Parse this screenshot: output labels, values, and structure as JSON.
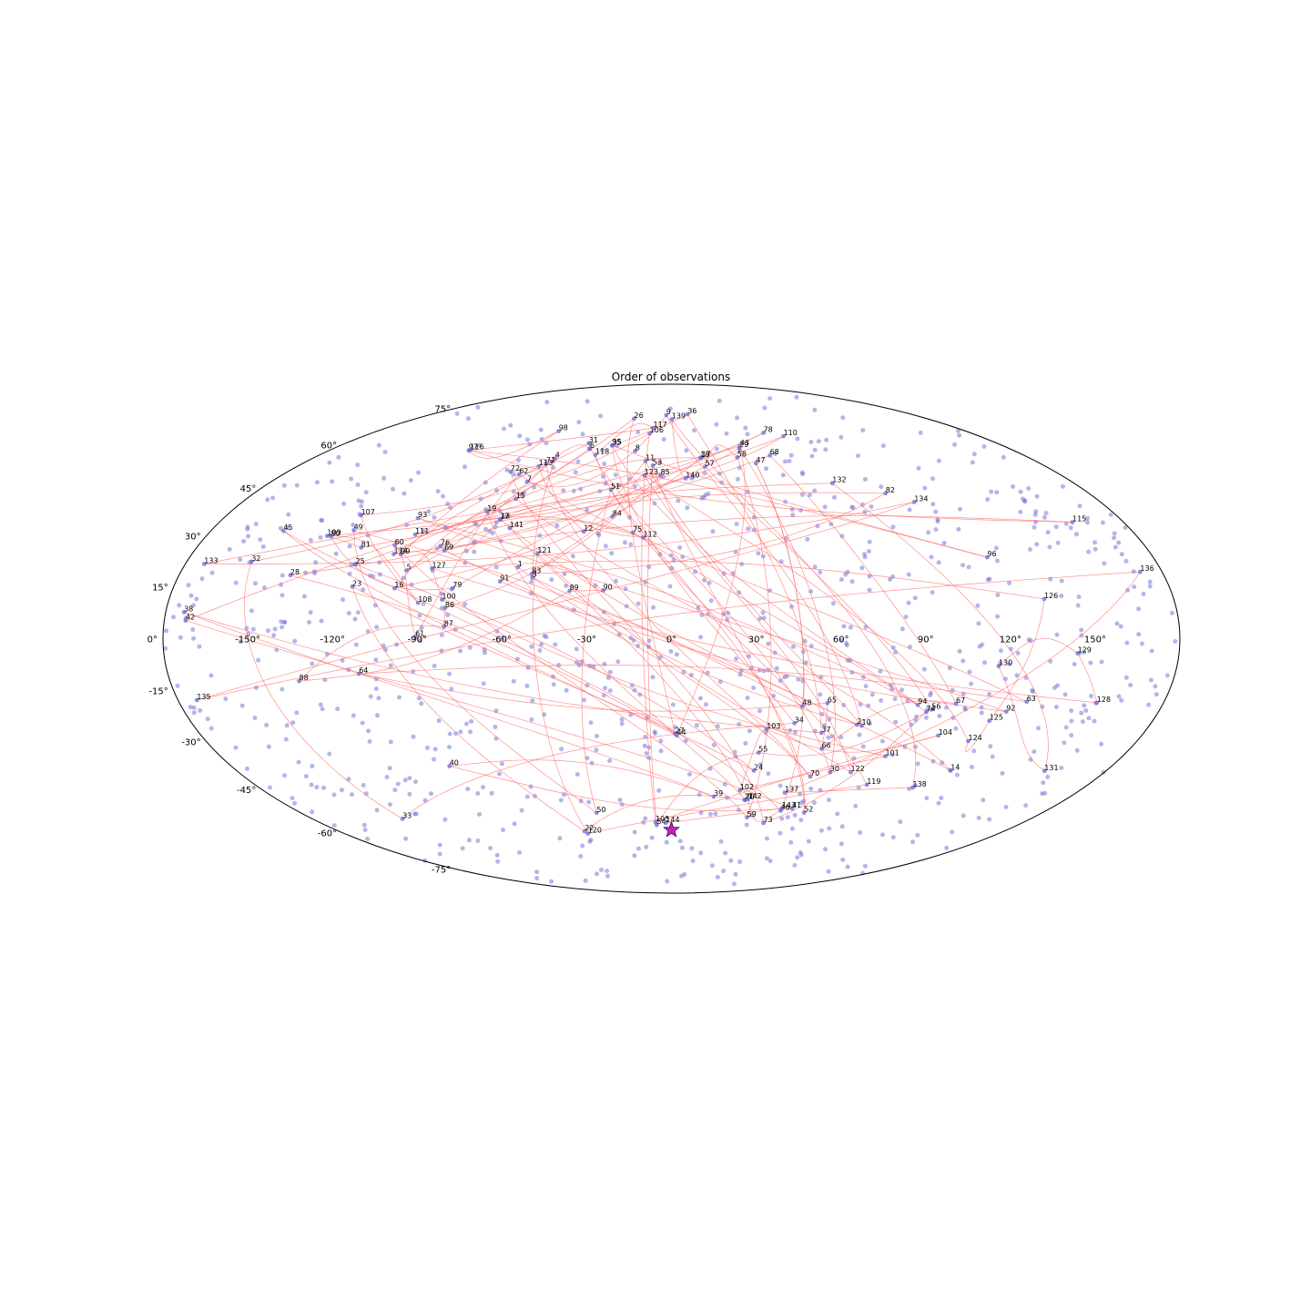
{
  "chart_data": {
    "type": "scatter",
    "projection": "mollweide",
    "title": "Order of observations",
    "grid": false,
    "colors": {
      "field_dots": "#6b6bd6",
      "path_lines": "#ff6b6b",
      "start_marker": "#c21fc2",
      "frame": "#000000"
    },
    "start_marker": {
      "lon": 0,
      "lat": -59
    },
    "lon_tick_labels": [
      {
        "lon": -150,
        "label": "-150°"
      },
      {
        "lon": -120,
        "label": "-120°"
      },
      {
        "lon": -90,
        "label": "-90°"
      },
      {
        "lon": -60,
        "label": "-60°"
      },
      {
        "lon": -30,
        "label": "-30°"
      },
      {
        "lon": 0,
        "label": "0°"
      },
      {
        "lon": 30,
        "label": "30°"
      },
      {
        "lon": 60,
        "label": "60°"
      },
      {
        "lon": 90,
        "label": "90°"
      },
      {
        "lon": 120,
        "label": "120°"
      },
      {
        "lon": 150,
        "label": "150°"
      }
    ],
    "lat_tick_labels": [
      {
        "lat": 75,
        "label": "75°"
      },
      {
        "lat": 60,
        "label": "60°"
      },
      {
        "lat": 45,
        "label": "45°"
      },
      {
        "lat": 30,
        "label": "30°"
      },
      {
        "lat": 15,
        "label": "15°"
      },
      {
        "lat": 0,
        "label": "0°"
      },
      {
        "lat": -15,
        "label": "-15°"
      },
      {
        "lat": -30,
        "label": "-30°"
      },
      {
        "lat": -45,
        "label": "-45°"
      },
      {
        "lat": -60,
        "label": "-60°"
      },
      {
        "lat": -75,
        "label": "-75°"
      }
    ],
    "observations": [
      {
        "n": 1,
        "lon": -56.7,
        "lat": 20.7
      },
      {
        "n": 2,
        "lon": 69.8,
        "lat": -25.0
      },
      {
        "n": 3,
        "lon": -50.7,
        "lat": 17.6
      },
      {
        "n": 4,
        "lon": -58.3,
        "lat": 55.0
      },
      {
        "n": 5,
        "lon": -97.3,
        "lat": 19.7
      },
      {
        "n": 6,
        "lon": -43.4,
        "lat": 58.5
      },
      {
        "n": 7,
        "lon": -64.9,
        "lat": 47.0
      },
      {
        "n": 8,
        "lon": -19.0,
        "lat": 57.7
      },
      {
        "n": 9,
        "lon": -3.8,
        "lat": 71.8
      },
      {
        "n": 10,
        "lon": 71.7,
        "lat": -25.3
      },
      {
        "n": 11,
        "lon": -12.8,
        "lat": 54.1
      },
      {
        "n": 12,
        "lon": -34.2,
        "lat": 31.3
      },
      {
        "n": 13,
        "lon": -68.4,
        "lat": 35.0
      },
      {
        "n": 14,
        "lon": 115.6,
        "lat": -39.0
      },
      {
        "n": 15,
        "lon": -65.9,
        "lat": 41.5
      },
      {
        "n": 16,
        "lon": -100.0,
        "lat": 14.5
      },
      {
        "n": 17,
        "lon": 15.2,
        "lat": 55.4
      },
      {
        "n": 18,
        "lon": 14.5,
        "lat": 55.2
      },
      {
        "n": 19,
        "lon": -75.2,
        "lat": 37.4
      },
      {
        "n": 20,
        "lon": 33.8,
        "lat": -48.5
      },
      {
        "n": 21,
        "lon": 33.5,
        "lat": -48.5
      },
      {
        "n": 22,
        "lon": -47.0,
        "lat": -59.5
      },
      {
        "n": 23,
        "lon": -115.4,
        "lat": 15.0
      },
      {
        "n": 24,
        "lon": 34.1,
        "lat": -39.0
      },
      {
        "n": 25,
        "lon": -116.9,
        "lat": 21.5
      },
      {
        "n": 26,
        "lon": -26.3,
        "lat": 70.3
      },
      {
        "n": 27,
        "lon": 1.4,
        "lat": -27.7
      },
      {
        "n": 28,
        "lon": -139.3,
        "lat": 18.3
      },
      {
        "n": 29,
        "lon": 36.3,
        "lat": 58.8
      },
      {
        "n": 30,
        "lon": 66.0,
        "lat": -39.5
      },
      {
        "n": 31,
        "lon": -45.6,
        "lat": 60.5
      },
      {
        "n": 32,
        "lon": -156.0,
        "lat": 22.3
      },
      {
        "n": 33,
        "lon": -134.8,
        "lat": -55.0
      },
      {
        "n": 34,
        "lon": 46.2,
        "lat": -24.5
      },
      {
        "n": 35,
        "lon": -32.3,
        "lat": 59.7
      },
      {
        "n": 36,
        "lon": 12.1,
        "lat": 72.2
      },
      {
        "n": 37,
        "lon": 57.2,
        "lat": -27.4
      },
      {
        "n": 38,
        "lon": -173.5,
        "lat": 7.6
      },
      {
        "n": 39,
        "lon": 19.1,
        "lat": -47.4
      },
      {
        "n": 40,
        "lon": -90.8,
        "lat": -37.6
      },
      {
        "n": 41,
        "lon": 57.4,
        "lat": -51.4
      },
      {
        "n": 42,
        "lon": -172.4,
        "lat": 5.2
      },
      {
        "n": 43,
        "lon": 37.1,
        "lat": 59.4
      },
      {
        "n": 44,
        "lon": 2.1,
        "lat": -28.2
      },
      {
        "n": 45,
        "lon": -151.6,
        "lat": 31.5
      },
      {
        "n": 46,
        "lon": 52.5,
        "lat": -52.2
      },
      {
        "n": 47,
        "lon": 41.3,
        "lat": 53.3
      },
      {
        "n": 48,
        "lon": 48.1,
        "lat": -19.5
      },
      {
        "n": 49,
        "lon": -124.3,
        "lat": 31.7
      },
      {
        "n": 50,
        "lon": -36.3,
        "lat": -52.9
      },
      {
        "n": 51,
        "lon": -26.4,
        "lat": 44.4
      },
      {
        "n": 52,
        "lon": 64.3,
        "lat": -52.8
      },
      {
        "n": 53,
        "lon": -9.0,
        "lat": 52.5
      },
      {
        "n": 54,
        "lon": -7.6,
        "lat": -57.2
      },
      {
        "n": 55,
        "lon": 34.5,
        "lat": -33.4
      },
      {
        "n": 56,
        "lon": 95.9,
        "lat": -20.5
      },
      {
        "n": 57,
        "lon": 16.2,
        "lat": 52.2
      },
      {
        "n": 58,
        "lon": 33.2,
        "lat": 55.4
      },
      {
        "n": 59,
        "lon": 37.6,
        "lat": -54.5
      },
      {
        "n": 60,
        "lon": -105.3,
        "lat": 27.2
      },
      {
        "n": 61,
        "lon": -90.7,
        "lat": 0.5
      },
      {
        "n": 62,
        "lon": -70.6,
        "lat": 49.5
      },
      {
        "n": 63,
        "lon": 129.8,
        "lat": -18.2
      },
      {
        "n": 64,
        "lon": -111.7,
        "lat": -10.1
      },
      {
        "n": 65,
        "lon": 57.1,
        "lat": -18.6
      },
      {
        "n": 66,
        "lon": 59.0,
        "lat": -32.2
      },
      {
        "n": 67,
        "lon": 104.2,
        "lat": -18.8
      },
      {
        "n": 68,
        "lon": 50.2,
        "lat": 56.1
      },
      {
        "n": 69,
        "lon": -85.7,
        "lat": 25.6
      },
      {
        "n": 70,
        "lon": 58.5,
        "lat": -40.9
      },
      {
        "n": 71,
        "lon": -61.1,
        "lat": 53.2
      },
      {
        "n": 72,
        "lon": -75.4,
        "lat": 50.4
      },
      {
        "n": 73,
        "lon": 47.3,
        "lat": -56.5
      },
      {
        "n": 74,
        "lon": 94.2,
        "lat": -21.2
      },
      {
        "n": 75,
        "lon": -15.0,
        "lat": 31.0
      },
      {
        "n": 76,
        "lon": -87.8,
        "lat": 27.0
      },
      {
        "n": 77,
        "lon": -68.7,
        "lat": 35.0
      },
      {
        "n": 78,
        "lon": 55.4,
        "lat": 64.5
      },
      {
        "n": 79,
        "lon": -79.0,
        "lat": 14.5
      },
      {
        "n": 80,
        "lon": -131.6,
        "lat": 29.8
      },
      {
        "n": 81,
        "lon": -117.6,
        "lat": 26.5
      },
      {
        "n": 82,
        "lon": 92.4,
        "lat": 43.3
      },
      {
        "n": 83,
        "lon": -51.1,
        "lat": 18.7
      },
      {
        "n": 84,
        "lon": -23.8,
        "lat": 35.9
      },
      {
        "n": 85,
        "lon": -5.0,
        "lat": 49.2
      },
      {
        "n": 86,
        "lon": -80.7,
        "lat": 8.8
      },
      {
        "n": 87,
        "lon": -80.6,
        "lat": 3.4
      },
      {
        "n": 88,
        "lon": -133.7,
        "lat": -12.2
      },
      {
        "n": 89,
        "lon": -36.7,
        "lat": 13.7
      },
      {
        "n": 90,
        "lon": -24.6,
        "lat": 13.9
      },
      {
        "n": 91,
        "lon": -62.3,
        "lat": 16.5
      },
      {
        "n": 92,
        "lon": 123.7,
        "lat": -21.1
      },
      {
        "n": 93,
        "lon": -101.9,
        "lat": 35.4
      },
      {
        "n": 94,
        "lon": 90.4,
        "lat": -19.1
      },
      {
        "n": 95,
        "lon": -32.1,
        "lat": 59.8
      },
      {
        "n": 96,
        "lon": 118.0,
        "lat": 23.6
      },
      {
        "n": 97,
        "lon": -106.7,
        "lat": 57.9
      },
      {
        "n": 98,
        "lon": -69.0,
        "lat": 65.2
      },
      {
        "n": 99,
        "lon": -101.5,
        "lat": 24.4
      },
      {
        "n": 100,
        "lon": -82.2,
        "lat": 11.2
      },
      {
        "n": 101,
        "lon": 85.4,
        "lat": -34.5
      },
      {
        "n": 102,
        "lon": 30.2,
        "lat": -45.3
      },
      {
        "n": 103,
        "lon": 36.1,
        "lat": -26.3
      },
      {
        "n": 104,
        "lon": 102.2,
        "lat": -28.2
      },
      {
        "n": 105,
        "lon": -8.1,
        "lat": -56.2
      },
      {
        "n": 106,
        "lon": -13.0,
        "lat": 64.3
      },
      {
        "n": 107,
        "lon": -125.6,
        "lat": 36.3
      },
      {
        "n": 108,
        "lon": -90.6,
        "lat": 10.3
      },
      {
        "n": 109,
        "lon": -133.2,
        "lat": 30.0
      },
      {
        "n": 110,
        "lon": 65.5,
        "lat": 63.2
      },
      {
        "n": 111,
        "lon": -99.4,
        "lat": 30.4
      },
      {
        "n": 112,
        "lon": -10.9,
        "lat": 29.5
      },
      {
        "n": 113,
        "lon": -63.8,
        "lat": 52.3
      },
      {
        "n": 114,
        "lon": -104.2,
        "lat": 24.5
      },
      {
        "n": 115,
        "lon": 159.7,
        "lat": 34.2
      },
      {
        "n": 116,
        "lon": -106.1,
        "lat": 58.0
      },
      {
        "n": 117,
        "lon": -11.5,
        "lat": 66.4
      },
      {
        "n": 118,
        "lon": -38.9,
        "lat": 56.3
      },
      {
        "n": 119,
        "lon": 84.5,
        "lat": -43.5
      },
      {
        "n": 120,
        "lon": -46.0,
        "lat": -60.3
      },
      {
        "n": 121,
        "lon": -50.3,
        "lat": 24.7
      },
      {
        "n": 122,
        "lon": 74.6,
        "lat": -39.5
      },
      {
        "n": 123,
        "lon": -12.5,
        "lat": 49.2
      },
      {
        "n": 124,
        "lon": 114.8,
        "lat": -29.9
      },
      {
        "n": 125,
        "lon": 118.9,
        "lat": -23.8
      },
      {
        "n": 126,
        "lon": 133.6,
        "lat": 11.4
      },
      {
        "n": 127,
        "lon": -88.2,
        "lat": 20.3
      },
      {
        "n": 128,
        "lon": 155.6,
        "lat": -18.5
      },
      {
        "n": 129,
        "lon": 144.0,
        "lat": -4.2
      },
      {
        "n": 130,
        "lon": 116.5,
        "lat": -7.9
      },
      {
        "n": 131,
        "lon": 154.6,
        "lat": -39.1
      },
      {
        "n": 132,
        "lon": 72.0,
        "lat": 46.6
      },
      {
        "n": 133,
        "lon": -173.0,
        "lat": 21.6
      },
      {
        "n": 134,
        "lon": 101.9,
        "lat": 40.5
      },
      {
        "n": 135,
        "lon": -173.1,
        "lat": -17.7
      },
      {
        "n": 136,
        "lon": 172.0,
        "lat": 19.3
      },
      {
        "n": 137,
        "lon": 50.4,
        "lat": -46.1
      },
      {
        "n": 138,
        "lon": 105.3,
        "lat": -44.4
      },
      {
        "n": 139,
        "lon": 0.2,
        "lat": 70.0
      },
      {
        "n": 140,
        "lon": 6.5,
        "lat": 48.2
      },
      {
        "n": 141,
        "lon": -63.6,
        "lat": 32.4
      },
      {
        "n": 142,
        "lon": 34.9,
        "lat": -48.3
      },
      {
        "n": 143,
        "lon": 52.5,
        "lat": -51.4
      },
      {
        "n": 144,
        "lon": -2.9,
        "lat": -56.5
      }
    ]
  }
}
